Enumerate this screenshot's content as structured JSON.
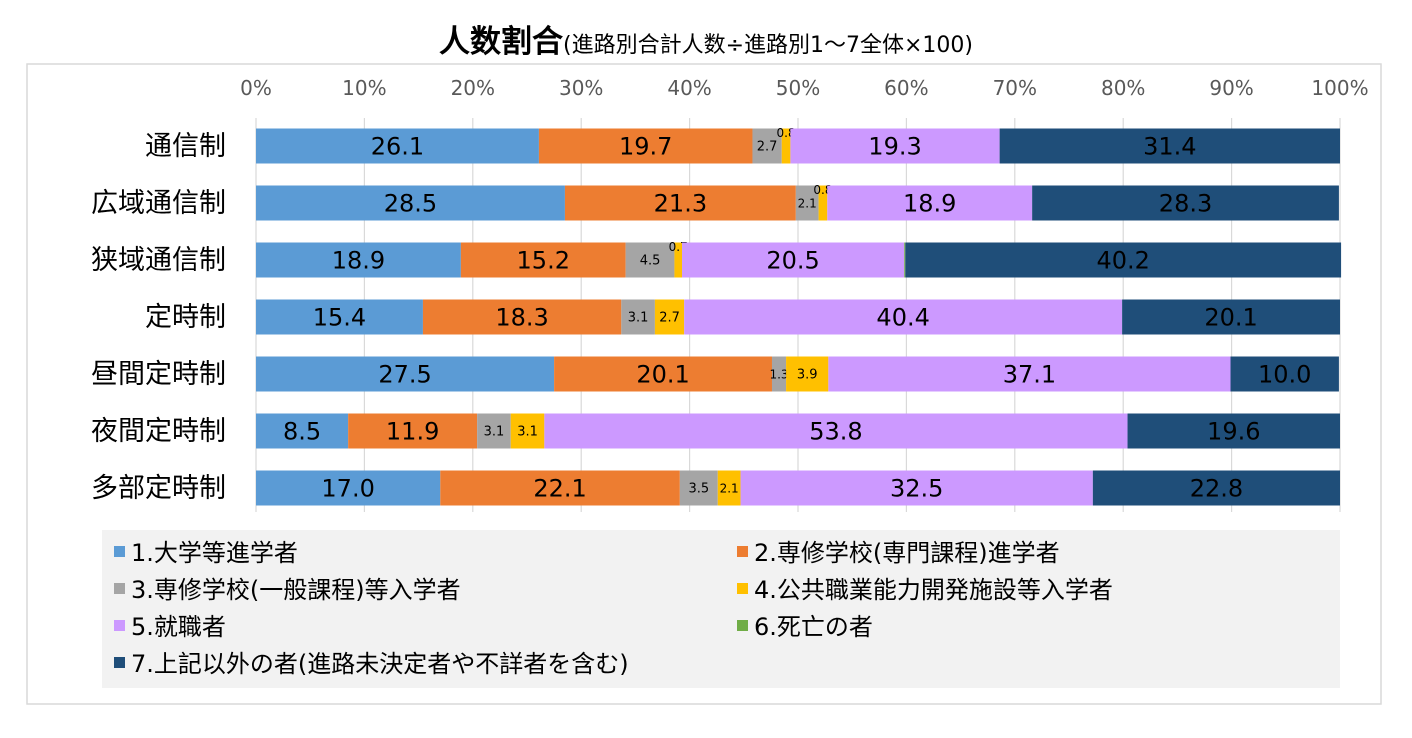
{
  "chart_data": {
    "type": "bar",
    "orientation": "horizontal",
    "stacked": "percent",
    "title": "人数割合",
    "subtitle": "(進路別合計人数÷進路別1～7全体×100)",
    "xlim": [
      0,
      100
    ],
    "x_ticks": [
      "0%",
      "10%",
      "20%",
      "30%",
      "40%",
      "50%",
      "60%",
      "70%",
      "80%",
      "90%",
      "100%"
    ],
    "categories": [
      "通信制",
      "広域通信制",
      "狭域通信制",
      "定時制",
      "昼間定時制",
      "夜間定時制",
      "多部定時制"
    ],
    "series": [
      {
        "name": "1.大学等進学者",
        "color": "#5b9bd5",
        "label_color": "#000000",
        "values": [
          26.1,
          28.5,
          18.9,
          15.4,
          27.5,
          8.5,
          17.0
        ],
        "labels": [
          "26.1",
          "28.5",
          "18.9",
          "15.4",
          "27.5",
          "8.5",
          "17.0"
        ]
      },
      {
        "name": "2.専修学校(専門課程)進学者",
        "color": "#ed7d31",
        "label_color": "#ffffff",
        "values": [
          19.7,
          21.3,
          15.2,
          18.3,
          20.1,
          11.9,
          22.1
        ],
        "labels": [
          "19.7",
          "21.3",
          "15.2",
          "18.3",
          "20.1",
          "11.9",
          "22.1"
        ]
      },
      {
        "name": "3.専修学校(一般課程)等入学者",
        "color": "#a5a5a5",
        "label_color": "#ffffff",
        "values": [
          2.7,
          2.1,
          4.5,
          3.1,
          1.3,
          3.1,
          3.5
        ],
        "labels": [
          "2.7",
          "2.1",
          "4.5",
          "3.1",
          "1.3",
          "3.1",
          "3.5"
        ]
      },
      {
        "name": "4.公共職業能力開発施設等入学者",
        "color": "#ffc000",
        "label_color": "#000000",
        "values": [
          0.8,
          0.8,
          0.7,
          2.7,
          3.9,
          3.1,
          2.1
        ],
        "labels": [
          "0.8",
          "0.8",
          "0.7",
          "2.7",
          "3.9",
          "3.1",
          "2.1"
        ]
      },
      {
        "name": "5.就職者",
        "color": "#cc99ff",
        "label_color": "#ffffff",
        "values": [
          19.3,
          18.9,
          20.5,
          40.4,
          37.1,
          53.8,
          32.5
        ],
        "labels": [
          "19.3",
          "18.9",
          "20.5",
          "40.4",
          "37.1",
          "53.8",
          "32.5"
        ]
      },
      {
        "name": "6.死亡の者",
        "color": "#70ad47",
        "label_color": "#ffffff",
        "values": [
          0.0,
          0.0,
          0.1,
          0.0,
          0.0,
          0.0,
          0.0
        ],
        "labels": [
          "0.0",
          "0.0",
          "0.1",
          "0.0",
          "0.0",
          "0.0",
          "0.0"
        ]
      },
      {
        "name": "7.上記以外の者(進路未決定者や不詳者を含む)",
        "color": "#1f4e79",
        "label_color": "#ffffff",
        "values": [
          31.4,
          28.3,
          40.2,
          20.1,
          10.0,
          19.6,
          22.8
        ],
        "labels": [
          "31.4",
          "28.3",
          "40.2",
          "20.1",
          "10.0",
          "19.6",
          "22.8"
        ]
      }
    ],
    "legend_position": "bottom"
  }
}
